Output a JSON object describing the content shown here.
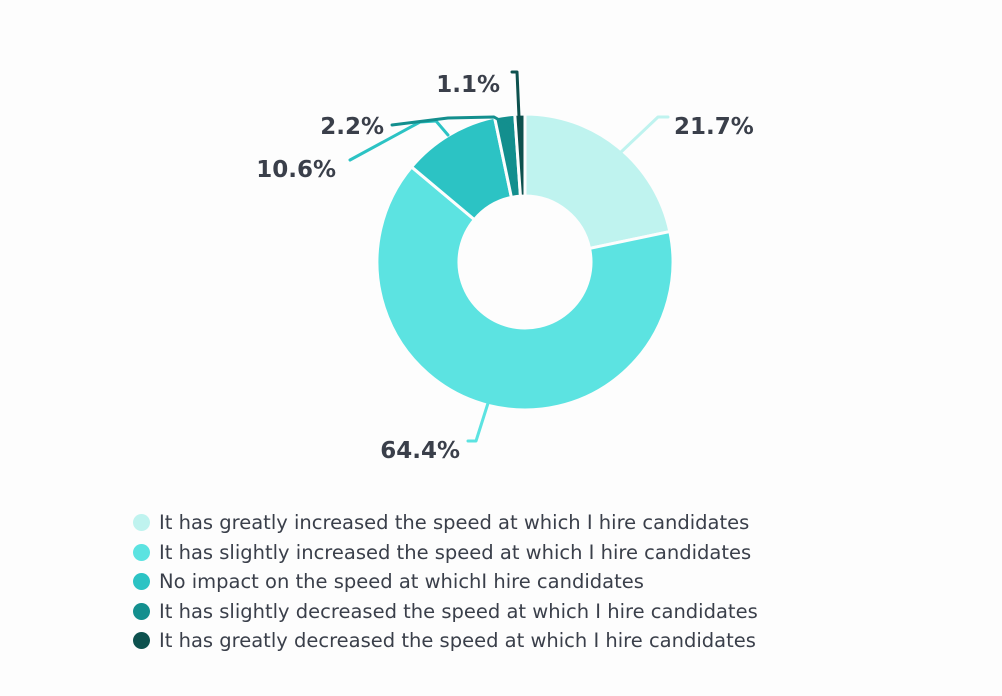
{
  "chart_data": {
    "type": "pie",
    "categories": [
      "It has greatly increased the speed at which I hire candidates",
      "It has slightly increased the speed at which I hire candidates",
      "No impact on the speed at whichI hire candidates",
      "It has slightly decreased the speed at which I hire candidates",
      "It has greatly decreased the speed at which I hire candidates"
    ],
    "values": [
      21.7,
      64.4,
      10.6,
      2.2,
      1.1
    ],
    "labels": [
      "21.7%",
      "64.4%",
      "10.6%",
      "2.2%",
      "1.1%"
    ],
    "colors": [
      "#bff3ef",
      "#5ce3e1",
      "#2cc3c4",
      "#138f8e",
      "#0d514e"
    ],
    "donut": true,
    "legend": "bottom"
  }
}
